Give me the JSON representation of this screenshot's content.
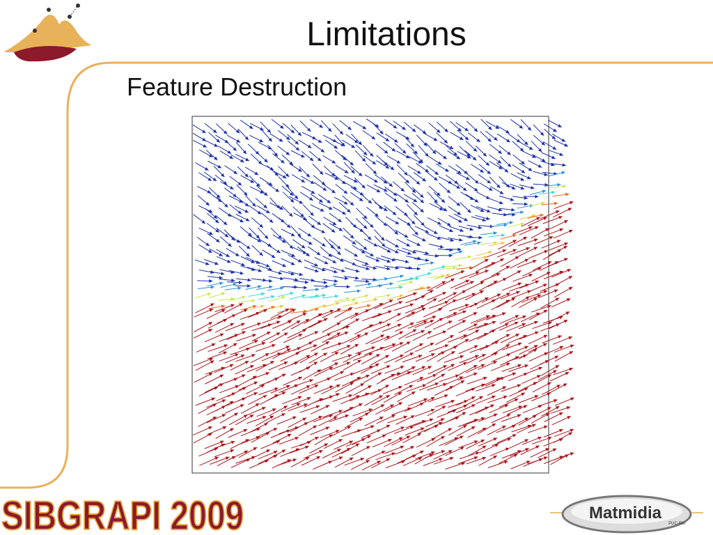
{
  "header": {
    "title": "Limitations",
    "subtitle": "Feature Destruction"
  },
  "footer": {
    "event": "SIBGRAPI 2009",
    "lab": "Matmidia",
    "lab_note": "PUC-Rio"
  }
}
